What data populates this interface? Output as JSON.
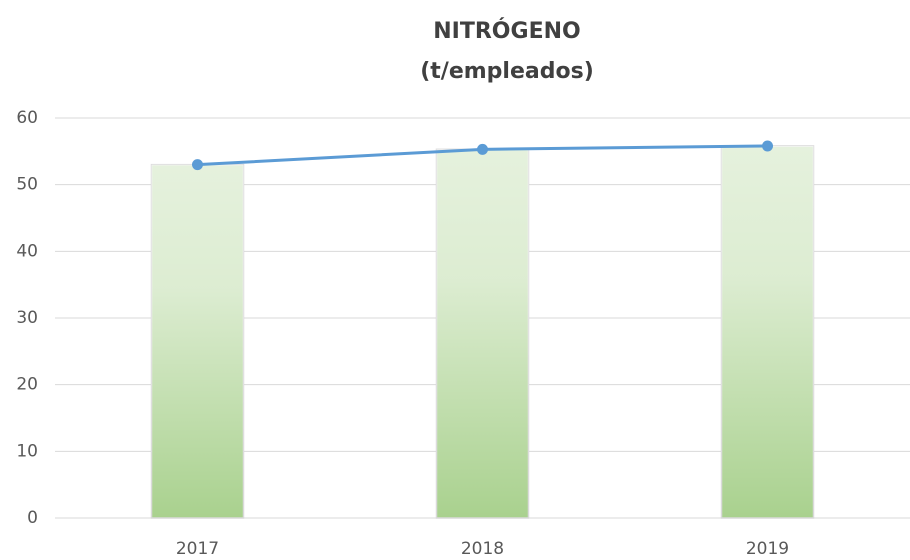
{
  "chart_data": {
    "type": "combo",
    "title": "NITRÓGENO",
    "subtitle": "(t/empleados)",
    "categories": [
      "2017",
      "2018",
      "2019"
    ],
    "series": [
      {
        "type": "bar",
        "color": "#a9d18e",
        "values": [
          53,
          55.3,
          55.8
        ]
      },
      {
        "type": "line",
        "color": "#5b9bd5",
        "values": [
          53,
          55.3,
          55.8
        ]
      }
    ],
    "ylim": [
      0,
      60
    ],
    "yticks": [
      0,
      10,
      20,
      30,
      40,
      50,
      60
    ],
    "grid": true
  }
}
